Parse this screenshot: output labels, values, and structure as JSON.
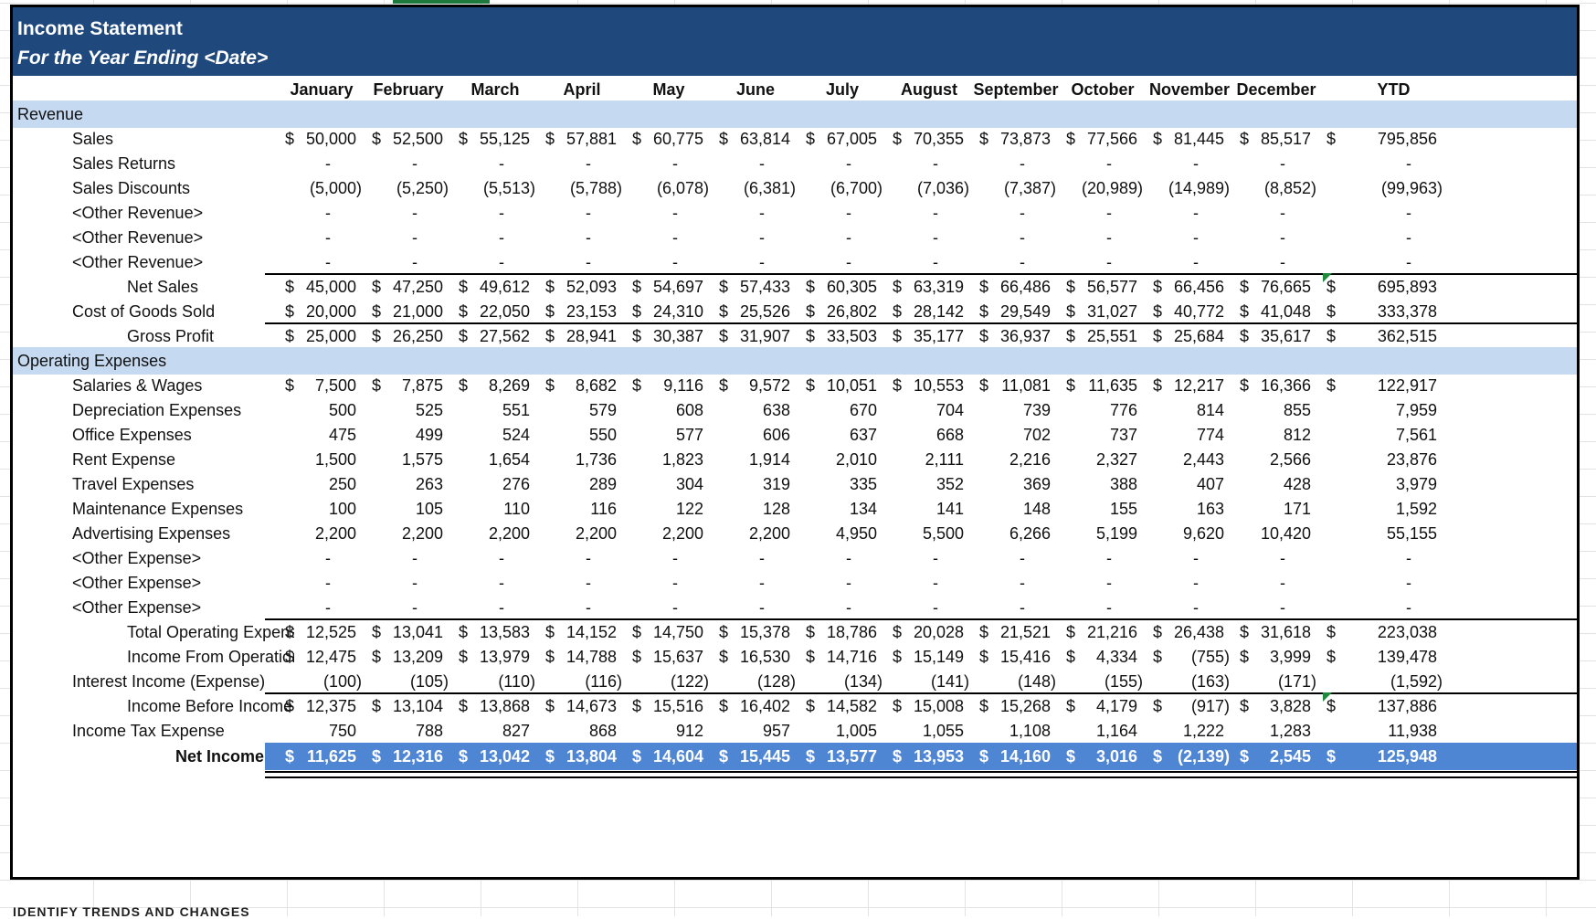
{
  "title": "Income Statement",
  "subtitle": "For the Year Ending <Date>",
  "months": [
    "January",
    "February",
    "March",
    "April",
    "May",
    "June",
    "July",
    "August",
    "September",
    "October",
    "November",
    "December",
    "YTD"
  ],
  "sections": {
    "revenue": "Revenue",
    "opex": "Operating Expenses"
  },
  "rows": {
    "sales": {
      "label": "Sales",
      "dollar": true,
      "values": [
        "50,000",
        "52,500",
        "55,125",
        "57,881",
        "60,775",
        "63,814",
        "67,005",
        "70,355",
        "73,873",
        "77,566",
        "81,445",
        "85,517",
        "795,856"
      ]
    },
    "sales_returns": {
      "label": "Sales Returns",
      "dollar": false,
      "values": [
        "-",
        "-",
        "-",
        "-",
        "-",
        "-",
        "-",
        "-",
        "-",
        "-",
        "-",
        "-",
        "-"
      ]
    },
    "sales_discounts": {
      "label": "Sales Discounts",
      "dollar": false,
      "values": [
        "(5,000)",
        "(5,250)",
        "(5,513)",
        "(5,788)",
        "(6,078)",
        "(6,381)",
        "(6,700)",
        "(7,036)",
        "(7,387)",
        "(20,989)",
        "(14,989)",
        "(8,852)",
        "(99,963)"
      ]
    },
    "other_rev_1": {
      "label": "<Other Revenue>",
      "dollar": false,
      "values": [
        "-",
        "-",
        "-",
        "-",
        "-",
        "-",
        "-",
        "-",
        "-",
        "-",
        "-",
        "-",
        "-"
      ]
    },
    "other_rev_2": {
      "label": "<Other Revenue>",
      "dollar": false,
      "values": [
        "-",
        "-",
        "-",
        "-",
        "-",
        "-",
        "-",
        "-",
        "-",
        "-",
        "-",
        "-",
        "-"
      ]
    },
    "other_rev_3": {
      "label": "<Other Revenue>",
      "dollar": false,
      "values": [
        "-",
        "-",
        "-",
        "-",
        "-",
        "-",
        "-",
        "-",
        "-",
        "-",
        "-",
        "-",
        "-"
      ]
    },
    "net_sales": {
      "label": "Net Sales",
      "dollar": true,
      "values": [
        "45,000",
        "47,250",
        "49,612",
        "52,093",
        "54,697",
        "57,433",
        "60,305",
        "63,319",
        "66,486",
        "56,577",
        "66,456",
        "76,665",
        "695,893"
      ]
    },
    "cogs": {
      "label": "Cost of Goods Sold",
      "dollar": true,
      "values": [
        "20,000",
        "21,000",
        "22,050",
        "23,153",
        "24,310",
        "25,526",
        "26,802",
        "28,142",
        "29,549",
        "31,027",
        "40,772",
        "41,048",
        "333,378"
      ]
    },
    "gross_profit": {
      "label": "Gross Profit",
      "dollar": true,
      "values": [
        "25,000",
        "26,250",
        "27,562",
        "28,941",
        "30,387",
        "31,907",
        "33,503",
        "35,177",
        "36,937",
        "25,551",
        "25,684",
        "35,617",
        "362,515"
      ]
    },
    "salaries": {
      "label": "Salaries & Wages",
      "dollar": true,
      "values": [
        "7,500",
        "7,875",
        "8,269",
        "8,682",
        "9,116",
        "9,572",
        "10,051",
        "10,553",
        "11,081",
        "11,635",
        "12,217",
        "16,366",
        "122,917"
      ]
    },
    "depreciation": {
      "label": "Depreciation Expenses",
      "dollar": false,
      "values": [
        "500",
        "525",
        "551",
        "579",
        "608",
        "638",
        "670",
        "704",
        "739",
        "776",
        "814",
        "855",
        "7,959"
      ]
    },
    "office": {
      "label": "Office Expenses",
      "dollar": false,
      "values": [
        "475",
        "499",
        "524",
        "550",
        "577",
        "606",
        "637",
        "668",
        "702",
        "737",
        "774",
        "812",
        "7,561"
      ]
    },
    "rent": {
      "label": "Rent Expense",
      "dollar": false,
      "values": [
        "1,500",
        "1,575",
        "1,654",
        "1,736",
        "1,823",
        "1,914",
        "2,010",
        "2,111",
        "2,216",
        "2,327",
        "2,443",
        "2,566",
        "23,876"
      ]
    },
    "travel": {
      "label": "Travel Expenses",
      "dollar": false,
      "values": [
        "250",
        "263",
        "276",
        "289",
        "304",
        "319",
        "335",
        "352",
        "369",
        "388",
        "407",
        "428",
        "3,979"
      ]
    },
    "maintenance": {
      "label": "Maintenance Expenses",
      "dollar": false,
      "values": [
        "100",
        "105",
        "110",
        "116",
        "122",
        "128",
        "134",
        "141",
        "148",
        "155",
        "163",
        "171",
        "1,592"
      ]
    },
    "advertising": {
      "label": "Advertising Expenses",
      "dollar": false,
      "values": [
        "2,200",
        "2,200",
        "2,200",
        "2,200",
        "2,200",
        "2,200",
        "4,950",
        "5,500",
        "6,266",
        "5,199",
        "9,620",
        "10,420",
        "55,155"
      ]
    },
    "other_exp_1": {
      "label": "<Other Expense>",
      "dollar": false,
      "values": [
        "-",
        "-",
        "-",
        "-",
        "-",
        "-",
        "-",
        "-",
        "-",
        "-",
        "-",
        "-",
        "-"
      ]
    },
    "other_exp_2": {
      "label": "<Other Expense>",
      "dollar": false,
      "values": [
        "-",
        "-",
        "-",
        "-",
        "-",
        "-",
        "-",
        "-",
        "-",
        "-",
        "-",
        "-",
        "-"
      ]
    },
    "other_exp_3": {
      "label": "<Other Expense>",
      "dollar": false,
      "values": [
        "-",
        "-",
        "-",
        "-",
        "-",
        "-",
        "-",
        "-",
        "-",
        "-",
        "-",
        "-",
        "-"
      ]
    },
    "total_opex": {
      "label": "Total Operating Expens",
      "dollar": true,
      "values": [
        "12,525",
        "13,041",
        "13,583",
        "14,152",
        "14,750",
        "15,378",
        "18,786",
        "20,028",
        "21,521",
        "21,216",
        "26,438",
        "31,618",
        "223,038"
      ]
    },
    "income_ops": {
      "label": "Income From Operatioı",
      "dollar": true,
      "values": [
        "12,475",
        "13,209",
        "13,979",
        "14,788",
        "15,637",
        "16,530",
        "14,716",
        "15,149",
        "15,416",
        "4,334",
        "(755)",
        "3,999",
        "139,478"
      ]
    },
    "interest": {
      "label": "Interest Income (Expense)",
      "dollar": false,
      "values": [
        "(100)",
        "(105)",
        "(110)",
        "(116)",
        "(122)",
        "(128)",
        "(134)",
        "(141)",
        "(148)",
        "(155)",
        "(163)",
        "(171)",
        "(1,592)"
      ]
    },
    "income_before_tax": {
      "label": "Income Before Income",
      "dollar": true,
      "values": [
        "12,375",
        "13,104",
        "13,868",
        "14,673",
        "15,516",
        "16,402",
        "14,582",
        "15,008",
        "15,268",
        "4,179",
        "(917)",
        "3,828",
        "137,886"
      ]
    },
    "income_tax": {
      "label": "Income Tax Expense",
      "dollar": false,
      "values": [
        "750",
        "788",
        "827",
        "868",
        "912",
        "957",
        "1,005",
        "1,055",
        "1,108",
        "1,164",
        "1,222",
        "1,283",
        "11,938"
      ]
    },
    "net_income": {
      "label": "Net Income",
      "dollar": true,
      "values": [
        "11,625",
        "12,316",
        "13,042",
        "13,804",
        "14,604",
        "15,445",
        "13,577",
        "13,953",
        "14,160",
        "3,016",
        "(2,139)",
        "2,545",
        "125,948"
      ]
    }
  },
  "currency_symbol": "$",
  "colors": {
    "title_band": "#1f497d",
    "section_band": "#c5d9f1",
    "net_income_band": "#4f86d4"
  },
  "bottom_partial_text": "IDENTIFY TRENDS AND CHANGES"
}
